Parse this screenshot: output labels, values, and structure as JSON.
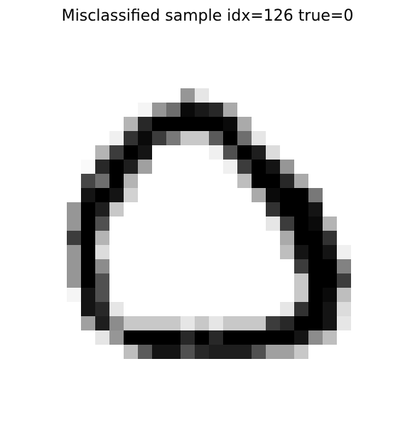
{
  "title": "Misclassified sample idx=126 true=0",
  "image": {
    "description": "28x28 grayscale MNIST digit, grayscale colormap",
    "cmap": "gray_r",
    "rows": [
      "............................",
      "............................",
      "............................",
      "............................",
      "............................",
      "............................",
      "........................... .",
      ".............6..............",
      "..........1687839...........",
      ".........399999985..........",
      ".........291883985..........",
      "........3883..288..........."
    ]
  }
}
